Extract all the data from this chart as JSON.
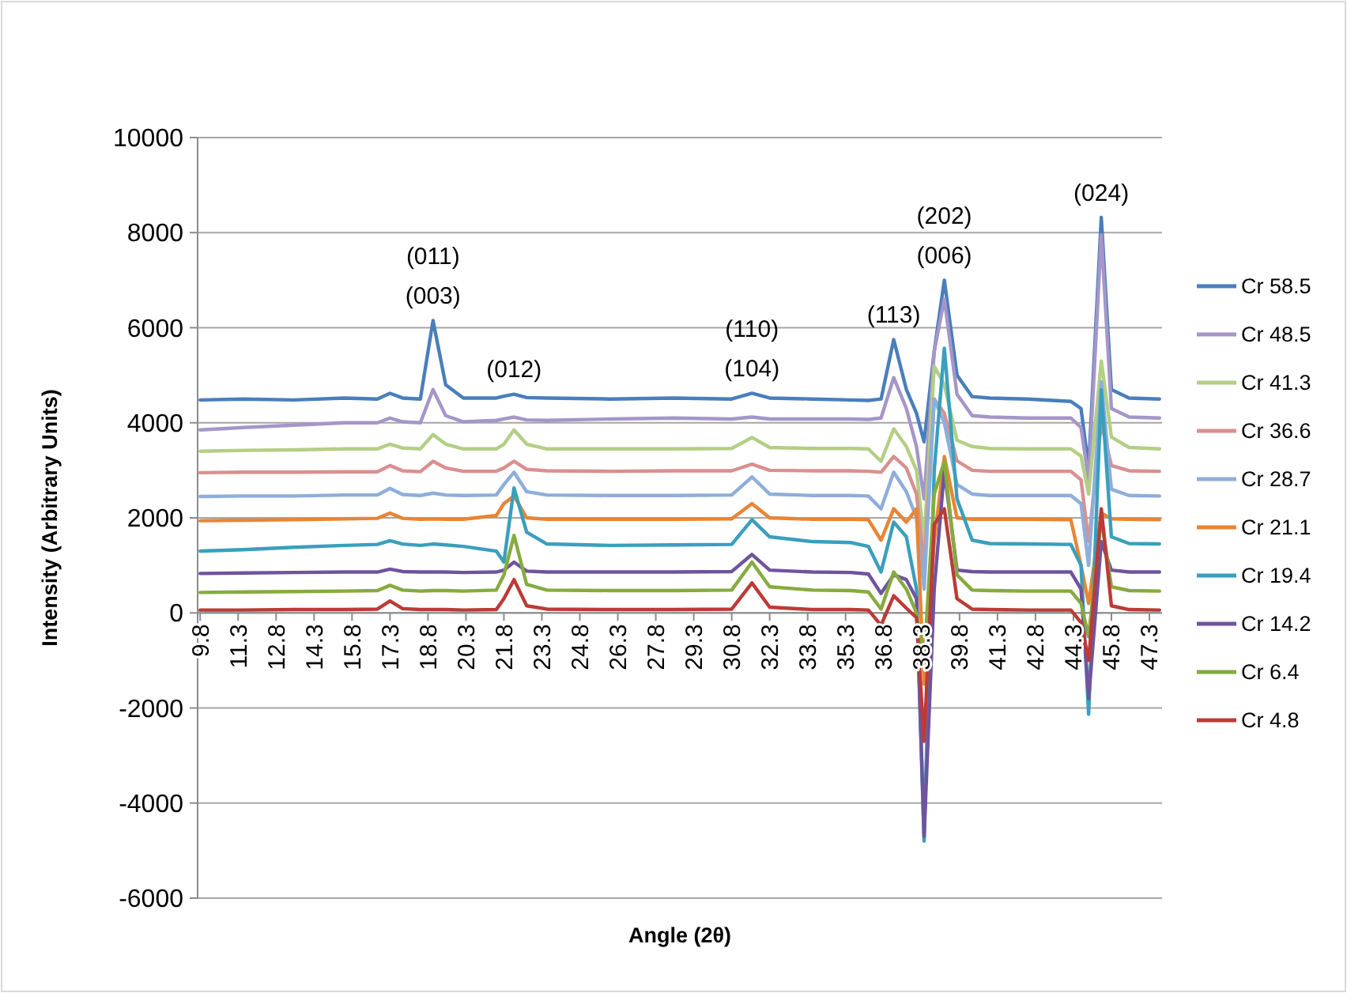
{
  "chart_data": {
    "type": "line",
    "xlabel": "Angle (2θ)",
    "ylabel": "Intensity (Arbitrary Units)",
    "xlim": [
      9.7,
      47.8
    ],
    "xticks": [
      9.8,
      11.3,
      12.8,
      14.3,
      15.8,
      17.3,
      18.8,
      20.3,
      21.8,
      23.3,
      24.8,
      26.3,
      27.8,
      29.3,
      30.8,
      32.3,
      33.8,
      35.3,
      36.8,
      38.3,
      39.8,
      41.3,
      42.8,
      44.3,
      45.8,
      47.3
    ],
    "ylim": [
      -6000,
      10000
    ],
    "yticks": [
      -6000,
      -4000,
      -2000,
      0,
      2000,
      4000,
      6000,
      8000,
      10000
    ],
    "grid": "y",
    "legend": "right",
    "x": [
      9.8,
      11.5,
      13.5,
      15.5,
      16.8,
      17.3,
      17.8,
      18.5,
      19.0,
      19.5,
      20.2,
      21.5,
      21.8,
      22.2,
      22.7,
      23.5,
      26,
      28.5,
      30.8,
      31.6,
      32.3,
      34,
      35.5,
      36.2,
      36.7,
      37.2,
      37.7,
      38.1,
      38.4,
      38.8,
      39.2,
      39.7,
      40.3,
      41,
      42.5,
      44.2,
      44.6,
      44.9,
      45.4,
      45.8,
      46.5,
      47.7
    ],
    "series": [
      {
        "name": "Cr 58.5",
        "color": "#4a7ebb",
        "values": [
          4480,
          4500,
          4480,
          4520,
          4500,
          4620,
          4520,
          4500,
          6150,
          4800,
          4520,
          4520,
          4560,
          4600,
          4530,
          4520,
          4500,
          4520,
          4500,
          4620,
          4520,
          4500,
          4480,
          4470,
          4500,
          5750,
          4700,
          4200,
          3600,
          5500,
          7000,
          5000,
          4550,
          4520,
          4500,
          4450,
          4300,
          3050,
          8320,
          4700,
          4520,
          4500
        ]
      },
      {
        "name": "Cr 48.5",
        "color": "#a596c8",
        "values": [
          3850,
          3900,
          3950,
          4000,
          4000,
          4100,
          4020,
          4000,
          4700,
          4150,
          4020,
          4050,
          4080,
          4120,
          4060,
          4050,
          4080,
          4100,
          4080,
          4120,
          4080,
          4080,
          4080,
          4070,
          4100,
          4950,
          4300,
          3500,
          2400,
          5500,
          6600,
          4600,
          4150,
          4120,
          4100,
          4100,
          3900,
          2800,
          7950,
          4300,
          4120,
          4100
        ]
      },
      {
        "name": "Cr 41.3",
        "color": "#b3cf84",
        "values": [
          3400,
          3420,
          3430,
          3450,
          3450,
          3550,
          3470,
          3450,
          3750,
          3550,
          3450,
          3450,
          3550,
          3850,
          3550,
          3450,
          3450,
          3450,
          3460,
          3690,
          3480,
          3460,
          3460,
          3450,
          3190,
          3870,
          3500,
          3000,
          1500,
          5190,
          4800,
          3630,
          3500,
          3460,
          3450,
          3450,
          3300,
          2500,
          5300,
          3700,
          3480,
          3450
        ]
      },
      {
        "name": "Cr 36.6",
        "color": "#d9908f",
        "values": [
          2950,
          2960,
          2960,
          2970,
          2970,
          3100,
          2990,
          2970,
          3190,
          3050,
          2980,
          2980,
          3050,
          3190,
          3020,
          2990,
          2980,
          2990,
          2990,
          3130,
          3000,
          2990,
          2990,
          2980,
          2960,
          3290,
          3050,
          2500,
          1000,
          4500,
          4200,
          3200,
          3000,
          2980,
          2980,
          2980,
          2800,
          1500,
          4000,
          3100,
          2990,
          2980
        ]
      },
      {
        "name": "Cr 28.7",
        "color": "#8eaedb",
        "values": [
          2450,
          2460,
          2460,
          2480,
          2480,
          2620,
          2490,
          2470,
          2520,
          2480,
          2470,
          2480,
          2700,
          2960,
          2550,
          2480,
          2470,
          2470,
          2480,
          2860,
          2500,
          2470,
          2470,
          2460,
          2190,
          2960,
          2550,
          2000,
          500,
          4500,
          4000,
          2700,
          2500,
          2470,
          2470,
          2470,
          2300,
          1000,
          4860,
          2600,
          2470,
          2460
        ]
      },
      {
        "name": "Cr 21.1",
        "color": "#e88534",
        "values": [
          1940,
          1950,
          1960,
          1980,
          1990,
          2100,
          1990,
          1970,
          1980,
          1970,
          1970,
          2050,
          2300,
          2460,
          2000,
          1970,
          1970,
          1970,
          1980,
          2300,
          2000,
          1970,
          1970,
          1960,
          1530,
          2190,
          1910,
          2190,
          -1500,
          1500,
          3290,
          2000,
          1970,
          1970,
          1970,
          1960,
          1000,
          200,
          2100,
          1980,
          1970,
          1960
        ]
      },
      {
        "name": "Cr 19.4",
        "color": "#3a9fbd",
        "values": [
          1300,
          1330,
          1380,
          1420,
          1440,
          1520,
          1450,
          1420,
          1450,
          1430,
          1400,
          1300,
          1070,
          2630,
          1700,
          1450,
          1420,
          1430,
          1440,
          1960,
          1600,
          1500,
          1480,
          1400,
          860,
          1910,
          1600,
          500,
          -4800,
          3000,
          5570,
          2400,
          1530,
          1460,
          1450,
          1440,
          1000,
          -2130,
          4690,
          1600,
          1460,
          1450
        ]
      },
      {
        "name": "Cr 14.2",
        "color": "#70539e",
        "values": [
          830,
          840,
          850,
          860,
          860,
          920,
          870,
          860,
          860,
          860,
          850,
          860,
          900,
          1070,
          880,
          860,
          860,
          860,
          870,
          1230,
          900,
          860,
          850,
          820,
          410,
          800,
          700,
          300,
          -4700,
          500,
          3000,
          900,
          870,
          860,
          860,
          860,
          500,
          -1800,
          1500,
          900,
          860,
          860
        ]
      },
      {
        "name": "Cr 6.4",
        "color": "#86ab3e",
        "values": [
          430,
          440,
          450,
          460,
          470,
          580,
          480,
          460,
          470,
          470,
          460,
          480,
          800,
          1630,
          600,
          480,
          470,
          470,
          480,
          1070,
          550,
          480,
          470,
          440,
          80,
          860,
          500,
          0,
          -1000,
          2500,
          3190,
          800,
          480,
          470,
          460,
          460,
          200,
          -500,
          2000,
          550,
          470,
          460
        ]
      },
      {
        "name": "Cr 4.8",
        "color": "#bb3b37",
        "values": [
          60,
          60,
          70,
          70,
          80,
          250,
          90,
          70,
          70,
          70,
          60,
          70,
          300,
          700,
          150,
          80,
          70,
          70,
          80,
          630,
          120,
          70,
          70,
          60,
          -260,
          360,
          100,
          -100,
          -2700,
          1860,
          2190,
          300,
          80,
          70,
          60,
          60,
          -200,
          -1000,
          2190,
          150,
          70,
          60
        ]
      }
    ],
    "annotations": [
      {
        "text": "(011)\n(003)",
        "x": 19.0,
        "y": 6150
      },
      {
        "text": "(012)",
        "x": 22.2,
        "y": 4600
      },
      {
        "text": "(110)\n(104)",
        "x": 31.6,
        "y": 4620
      },
      {
        "text": "(113)",
        "x": 37.2,
        "y": 5750
      },
      {
        "text": "(202)\n(006)",
        "x": 39.2,
        "y": 7000
      },
      {
        "text": "(024)",
        "x": 45.4,
        "y": 8320
      }
    ]
  }
}
